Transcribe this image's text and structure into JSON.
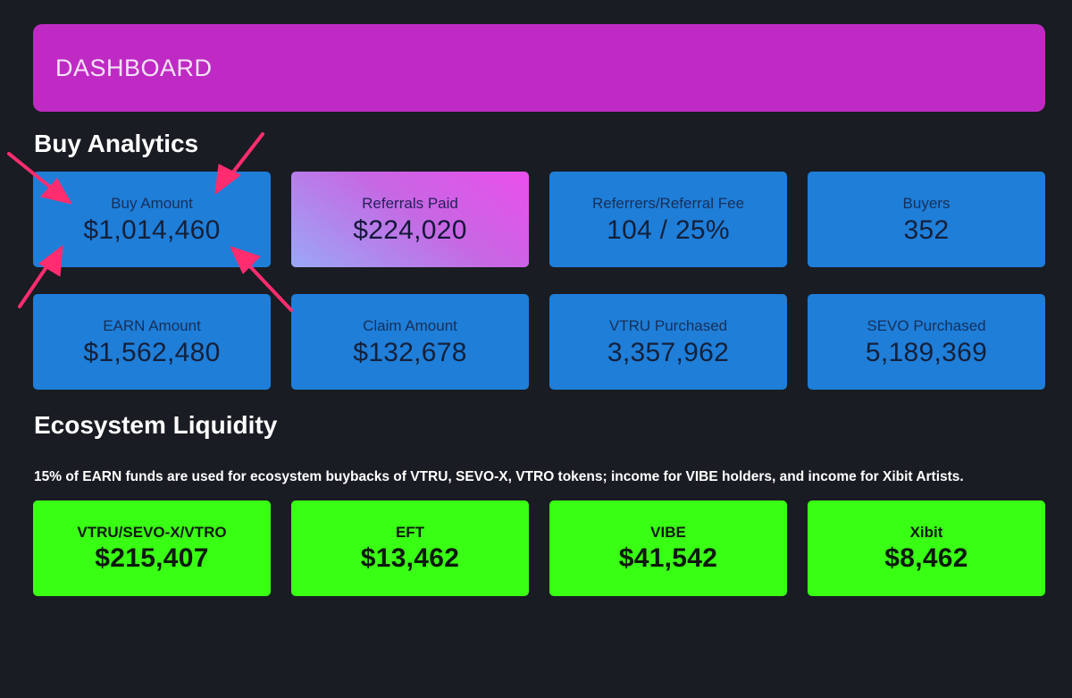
{
  "header": {
    "title": "DASHBOARD"
  },
  "buy_analytics": {
    "title": "Buy Analytics",
    "cards": [
      {
        "label": "Buy Amount",
        "value": "$1,014,460"
      },
      {
        "label": "Referrals Paid",
        "value": "$224,020"
      },
      {
        "label": "Referrers/Referral Fee",
        "value": "104 / 25%"
      },
      {
        "label": "Buyers",
        "value": "352"
      },
      {
        "label": "EARN Amount",
        "value": "$1,562,480"
      },
      {
        "label": "Claim Amount",
        "value": "$132,678"
      },
      {
        "label": "VTRU Purchased",
        "value": "3,357,962"
      },
      {
        "label": "SEVO Purchased",
        "value": "5,189,369"
      }
    ]
  },
  "ecosystem_liquidity": {
    "title": "Ecosystem Liquidity",
    "note": "15% of EARN funds are used for ecosystem buybacks of VTRU, SEVO-X, VTRO tokens; income for VIBE holders, and income for Xibit Artists.",
    "cards": [
      {
        "label": "VTRU/SEVO-X/VTRO",
        "value": "$215,407"
      },
      {
        "label": "EFT",
        "value": "$13,462"
      },
      {
        "label": "VIBE",
        "value": "$41,542"
      },
      {
        "label": "Xibit",
        "value": "$8,462"
      }
    ]
  },
  "colors": {
    "background": "#191c22",
    "header": "#bf2ac4",
    "card_blue": "#1f7ed8",
    "card_green": "#39ff14",
    "annotation_arrow": "#ff2d6f"
  },
  "annotation": {
    "icon": "arrow-icon",
    "count": 4
  }
}
